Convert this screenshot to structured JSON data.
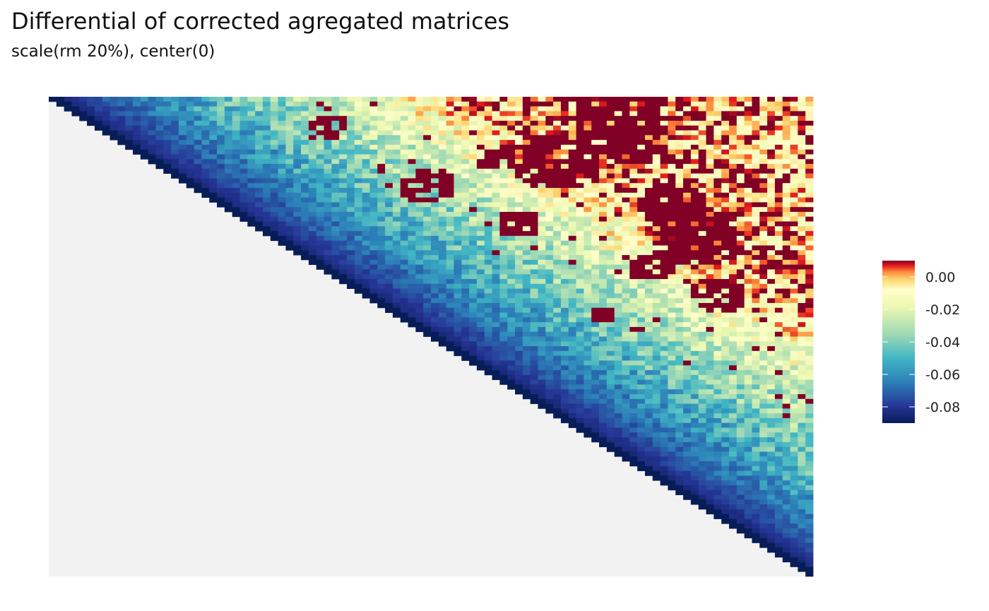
{
  "chart_data": {
    "type": "heatmap",
    "title": "Differential of corrected agregated matrices",
    "subtitle": "scale(rm 20%), center(0)",
    "xlabel": "",
    "ylabel": "",
    "grid": false,
    "layout": "upper-triangular",
    "bins": 100,
    "background_color": "#f2f2f2",
    "diagonal_value": -0.09,
    "value_model": {
      "description_diagonal": "values are strongly negative near the diagonal and rise toward 0 and above far from it",
      "near_diagonal": -0.09,
      "far_from_diagonal": 0.0,
      "hotspot_value": 0.01
    },
    "colorbar": {
      "position": "right",
      "min": -0.09,
      "max": 0.01,
      "ticks": [
        0.0,
        -0.02,
        -0.04,
        -0.06,
        -0.08
      ],
      "tick_labels": [
        "0.00",
        "-0.02",
        "-0.04",
        "-0.06",
        "-0.08"
      ],
      "colors": [
        "#08306b",
        "#253494",
        "#2c7fb8",
        "#41b6c4",
        "#a1dab4",
        "#ffffcc",
        "#fed976",
        "#fd8d3c",
        "#e31a1c",
        "#800026"
      ],
      "palette_name": "RdYlBu"
    }
  }
}
